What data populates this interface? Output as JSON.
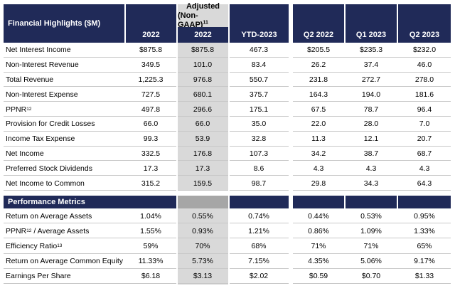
{
  "header": {
    "title": "Financial Highlights ($M)",
    "adjusted_line1": "Adjusted",
    "adjusted_line2": "(Non-GAAP)",
    "adjusted_sup": "11",
    "columns": [
      "2022",
      "2022",
      "YTD-2023",
      "Q2 2022",
      "Q1 2023",
      "Q2 2023"
    ]
  },
  "financial_rows": [
    {
      "label": "Net Interest Income",
      "sup": "",
      "values": [
        "$875.8",
        "$875.8",
        "467.3",
        "$205.5",
        "$235.3",
        "$232.0"
      ]
    },
    {
      "label": "Non-Interest Revenue",
      "sup": "",
      "values": [
        "349.5",
        "101.0",
        "83.4",
        "26.2",
        "37.4",
        "46.0"
      ]
    },
    {
      "label": "Total Revenue",
      "sup": "",
      "values": [
        "1,225.3",
        "976.8",
        "550.7",
        "231.8",
        "272.7",
        "278.0"
      ]
    },
    {
      "label": "Non-Interest Expense",
      "sup": "",
      "values": [
        "727.5",
        "680.1",
        "375.7",
        "164.3",
        "194.0",
        "181.6"
      ]
    },
    {
      "label": "PPNR",
      "sup": "12",
      "values": [
        "497.8",
        "296.6",
        "175.1",
        "67.5",
        "78.7",
        "96.4"
      ]
    },
    {
      "label": "Provision for Credit Losses",
      "sup": "",
      "values": [
        "66.0",
        "66.0",
        "35.0",
        "22.0",
        "28.0",
        "7.0"
      ]
    },
    {
      "label": "Income Tax Expense",
      "sup": "",
      "values": [
        "99.3",
        "53.9",
        "32.8",
        "11.3",
        "12.1",
        "20.7"
      ]
    },
    {
      "label": "Net Income",
      "sup": "",
      "values": [
        "332.5",
        "176.8",
        "107.3",
        "34.2",
        "38.7",
        "68.7"
      ]
    },
    {
      "label": "Preferred Stock Dividends",
      "sup": "",
      "values": [
        "17.3",
        "17.3",
        "8.6",
        "4.3",
        "4.3",
        "4.3"
      ]
    },
    {
      "label": "Net Income to Common",
      "sup": "",
      "values": [
        "315.2",
        "159.5",
        "98.7",
        "29.8",
        "34.3",
        "64.3"
      ]
    }
  ],
  "performance": {
    "title": "Performance Metrics",
    "rows": [
      {
        "label": "Return on Average Assets",
        "sup": "",
        "suffix": "",
        "values": [
          "1.04%",
          "0.55%",
          "0.74%",
          "0.44%",
          "0.53%",
          "0.95%"
        ]
      },
      {
        "label": "PPNR",
        "sup": "12",
        "suffix": " / Average Assets",
        "values": [
          "1.55%",
          "0.93%",
          "1.21%",
          "0.86%",
          "1.09%",
          "1.33%"
        ]
      },
      {
        "label": "Efficiency Ratio",
        "sup": "13",
        "suffix": "",
        "values": [
          "59%",
          "70%",
          "68%",
          "71%",
          "71%",
          "65%"
        ]
      },
      {
        "label": "Return on Average Common Equity",
        "sup": "",
        "suffix": "",
        "values": [
          "11.33%",
          "5.73%",
          "7.15%",
          "4.35%",
          "5.06%",
          "9.17%"
        ]
      },
      {
        "label": "Earnings Per Share",
        "sup": "",
        "suffix": "",
        "values": [
          "$6.18",
          "$3.13",
          "$2.02",
          "$0.59",
          "$0.70",
          "$1.33"
        ]
      }
    ]
  },
  "colors": {
    "navy": "#202a58",
    "gray": "#d9d9d9"
  }
}
